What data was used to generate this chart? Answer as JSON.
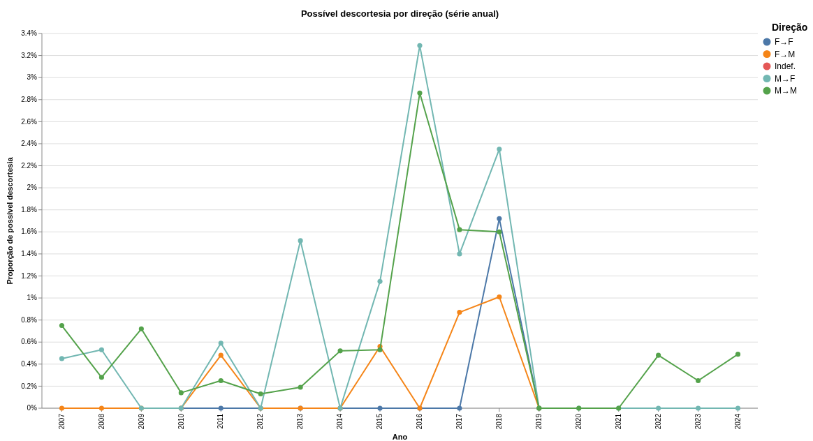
{
  "chart_data": {
    "type": "line",
    "title": "Possível descortesia por direção (série anual)",
    "xlabel": "Ano",
    "ylabel": "Proporção de possível descortesia",
    "legend_title": "Direção",
    "legend": "top right",
    "marker": "circle",
    "grid": "y",
    "categories": [
      "2007",
      "2008",
      "2009",
      "2010",
      "2011",
      "2012",
      "2013",
      "2014",
      "2015",
      "2016",
      "2017",
      "2018",
      "2019",
      "2020",
      "2021",
      "2022",
      "2023",
      "2024"
    ],
    "ylim": [
      0,
      3.4
    ],
    "yticks": [
      {
        "value": 0,
        "label": "0%"
      },
      {
        "value": 0.2,
        "label": "0.2%"
      },
      {
        "value": 0.4,
        "label": "0.4%"
      },
      {
        "value": 0.6,
        "label": "0.6%"
      },
      {
        "value": 0.8,
        "label": "0.8%"
      },
      {
        "value": 1,
        "label": "1%"
      },
      {
        "value": 1.2,
        "label": "1.2%"
      },
      {
        "value": 1.4,
        "label": "1.4%"
      },
      {
        "value": 1.6,
        "label": "1.6%"
      },
      {
        "value": 1.8,
        "label": "1.8%"
      },
      {
        "value": 2,
        "label": "2%"
      },
      {
        "value": 2.2,
        "label": "2.2%"
      },
      {
        "value": 2.4,
        "label": "2.4%"
      },
      {
        "value": 2.6,
        "label": "2.6%"
      },
      {
        "value": 2.8,
        "label": "2.8%"
      },
      {
        "value": 3,
        "label": "3%"
      },
      {
        "value": 3.2,
        "label": "3.2%"
      },
      {
        "value": 3.4,
        "label": "3.4%"
      }
    ],
    "series": [
      {
        "name": "F→F",
        "color": "#4c78a8",
        "values": [
          null,
          null,
          null,
          0,
          0,
          0,
          0,
          0,
          0,
          0,
          0,
          1.72,
          0,
          null,
          null,
          null,
          null,
          null
        ]
      },
      {
        "name": "F→M",
        "color": "#f58518",
        "values": [
          0,
          0,
          0,
          0,
          0.48,
          0,
          0,
          0,
          0.56,
          0,
          0.87,
          1.01,
          0,
          null,
          null,
          null,
          null,
          null
        ]
      },
      {
        "name": "Indef.",
        "color": "#e45756",
        "values": [
          null,
          null,
          null,
          null,
          null,
          null,
          null,
          null,
          null,
          null,
          null,
          null,
          null,
          null,
          null,
          null,
          null,
          null
        ]
      },
      {
        "name": "M→F",
        "color": "#72b7b2",
        "values": [
          0.45,
          0.53,
          0,
          0,
          0.59,
          0,
          1.52,
          0,
          1.15,
          3.29,
          1.4,
          2.35,
          0,
          0,
          0,
          0,
          0,
          0
        ]
      },
      {
        "name": "M→M",
        "color": "#54a24b",
        "values": [
          0.75,
          0.28,
          0.72,
          0.14,
          0.25,
          0.13,
          0.19,
          0.52,
          0.53,
          2.86,
          1.62,
          1.6,
          0,
          0,
          0,
          0.48,
          0.25,
          0.49
        ]
      }
    ]
  }
}
